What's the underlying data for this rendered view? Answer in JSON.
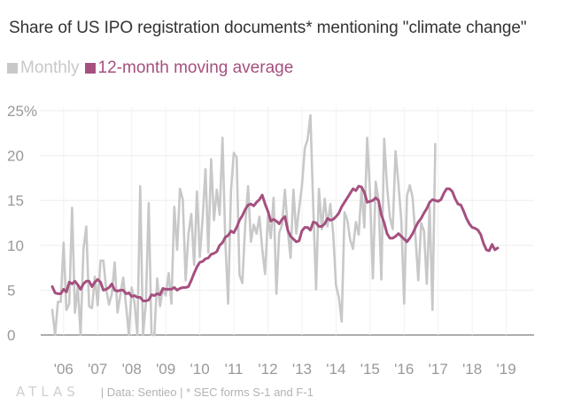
{
  "title": "Share of US IPO registration documents* mentioning \"climate change\"",
  "legend": [
    {
      "label": "Monthly",
      "color": "#c8c8c8"
    },
    {
      "label": "12-month moving average",
      "color": "#a5507f"
    }
  ],
  "footer": {
    "logo": "ATLAS",
    "source": "| Data: Sentieo | * SEC forms S-1 and F-1"
  },
  "chart_data": {
    "type": "line",
    "x_start": "2005-09",
    "x_end": "2019-03",
    "ylim": [
      0,
      25
    ],
    "yticks": [
      0,
      5,
      10,
      15,
      20,
      25
    ],
    "ytick_labels": [
      "0",
      "5",
      "10",
      "15",
      "20",
      "25%"
    ],
    "xticks": [
      {
        "date": "2006-01",
        "label": "'06"
      },
      {
        "date": "2007-01",
        "label": "'07"
      },
      {
        "date": "2008-01",
        "label": "'08"
      },
      {
        "date": "2009-01",
        "label": "'09"
      },
      {
        "date": "2010-01",
        "label": "'10"
      },
      {
        "date": "2011-01",
        "label": "'11"
      },
      {
        "date": "2012-01",
        "label": "'12"
      },
      {
        "date": "2013-01",
        "label": "'13"
      },
      {
        "date": "2014-01",
        "label": "'14"
      },
      {
        "date": "2015-01",
        "label": "'15"
      },
      {
        "date": "2016-01",
        "label": "'16"
      },
      {
        "date": "2017-01",
        "label": "'17"
      },
      {
        "date": "2018-01",
        "label": "'18"
      },
      {
        "date": "2019-01",
        "label": "'19"
      }
    ],
    "grid": true,
    "legend_position": "top-left",
    "series": [
      {
        "name": "Monthly",
        "color": "#c8c8c8",
        "values": [
          2.8,
          0,
          3.7,
          3.7,
          10.3,
          2.8,
          3.5,
          14.2,
          2.5,
          5.4,
          0,
          9.5,
          12.1,
          3.2,
          3.0,
          6.5,
          3.3,
          8.3,
          8.3,
          5.1,
          3.4,
          4.6,
          8.1,
          2.5,
          4.5,
          6.4,
          3.3,
          0,
          5.3,
          3.6,
          0,
          16.6,
          0,
          3.5,
          14.7,
          0,
          0,
          6.3,
          3.2,
          5.2,
          4.4,
          6.9,
          3.5,
          14.3,
          9.5,
          16.3,
          15.1,
          6.1,
          11.3,
          13.5,
          7.8,
          16.0,
          8.7,
          13.0,
          18.5,
          9.2,
          19.6,
          12.8,
          16.2,
          13.4,
          22.0,
          10.5,
          3.5,
          16.1,
          20.3,
          19.8,
          6.7,
          5.8,
          12.3,
          16.6,
          10.4,
          12.3,
          11.3,
          13.2,
          9.6,
          6.8,
          13.3,
          10.8,
          15.3,
          4.6,
          11.4,
          12.3,
          16.2,
          11.7,
          8.6,
          16.2,
          11.3,
          14.1,
          16.6,
          20.8,
          21.8,
          24.5,
          14.2,
          5.1,
          16.3,
          11.8,
          15.2,
          12.1,
          14.6,
          11.3,
          5.5,
          4.2,
          1.5,
          13.7,
          12.8,
          10.6,
          9.6,
          12.6,
          11.2,
          16.3,
          12.0,
          22.0,
          15.8,
          6.3,
          17.1,
          15.0,
          6.2,
          21.9,
          16.6,
          13.1,
          11.8,
          20.5,
          16.8,
          12.8,
          3.5,
          15.5,
          16.7,
          15.3,
          11.0,
          6.1,
          12.5,
          11.6,
          5.7,
          14.3,
          2.8,
          21.3
        ]
      },
      {
        "name": "12-month moving average",
        "color": "#a5507f",
        "values": [
          5.4,
          4.7,
          4.6,
          4.6,
          5.1,
          4.8,
          5.9,
          5.7,
          6.0,
          5.6,
          5.1,
          5.7,
          6.0,
          6.0,
          5.4,
          5.9,
          6.2,
          5.9,
          5.0,
          5.1,
          5.3,
          5.7,
          5.0,
          4.9,
          5.0,
          5.0,
          4.6,
          4.7,
          4.3,
          4.4,
          4.2,
          4.2,
          3.8,
          3.8,
          3.9,
          4.5,
          4.4,
          4.6,
          4.5,
          5.2,
          5.1,
          5.1,
          5.1,
          5.3,
          5.0,
          5.2,
          5.3,
          5.3,
          5.4,
          6.1,
          6.9,
          7.6,
          8.1,
          8.2,
          8.5,
          8.6,
          9.0,
          9.1,
          9.3,
          10.0,
          10.3,
          10.9,
          11.1,
          11.6,
          11.4,
          12.0,
          12.8,
          13.3,
          14.0,
          14.5,
          14.6,
          14.4,
          14.8,
          15.1,
          15.6,
          14.6,
          13.8,
          12.7,
          12.9,
          12.7,
          12.4,
          12.9,
          13.2,
          11.7,
          11.0,
          10.7,
          10.4,
          10.5,
          11.6,
          12.0,
          12.0,
          11.7,
          12.6,
          12.5,
          12.1,
          12.1,
          12.4,
          13.0,
          12.8,
          12.9,
          13.2,
          13.6,
          14.3,
          14.8,
          15.3,
          15.8,
          16.3,
          16.1,
          16.6,
          16.5,
          15.9,
          14.8,
          14.9,
          15.0,
          15.3,
          15.0,
          13.4,
          12.5,
          11.3,
          10.8,
          10.8,
          11.0,
          11.3,
          11.0,
          10.7,
          10.4,
          10.8,
          11.3,
          12.0,
          12.6,
          13.0,
          13.6,
          14.1,
          14.8,
          15.1,
          15.0,
          14.9,
          15.1,
          15.8,
          16.3,
          16.3,
          16.0,
          15.2,
          14.6,
          14.5,
          13.8,
          13.0,
          12.4,
          12.0,
          11.9,
          11.7,
          11.2,
          10.2,
          9.5,
          9.4,
          10.1,
          9.5,
          9.7
        ]
      }
    ]
  }
}
